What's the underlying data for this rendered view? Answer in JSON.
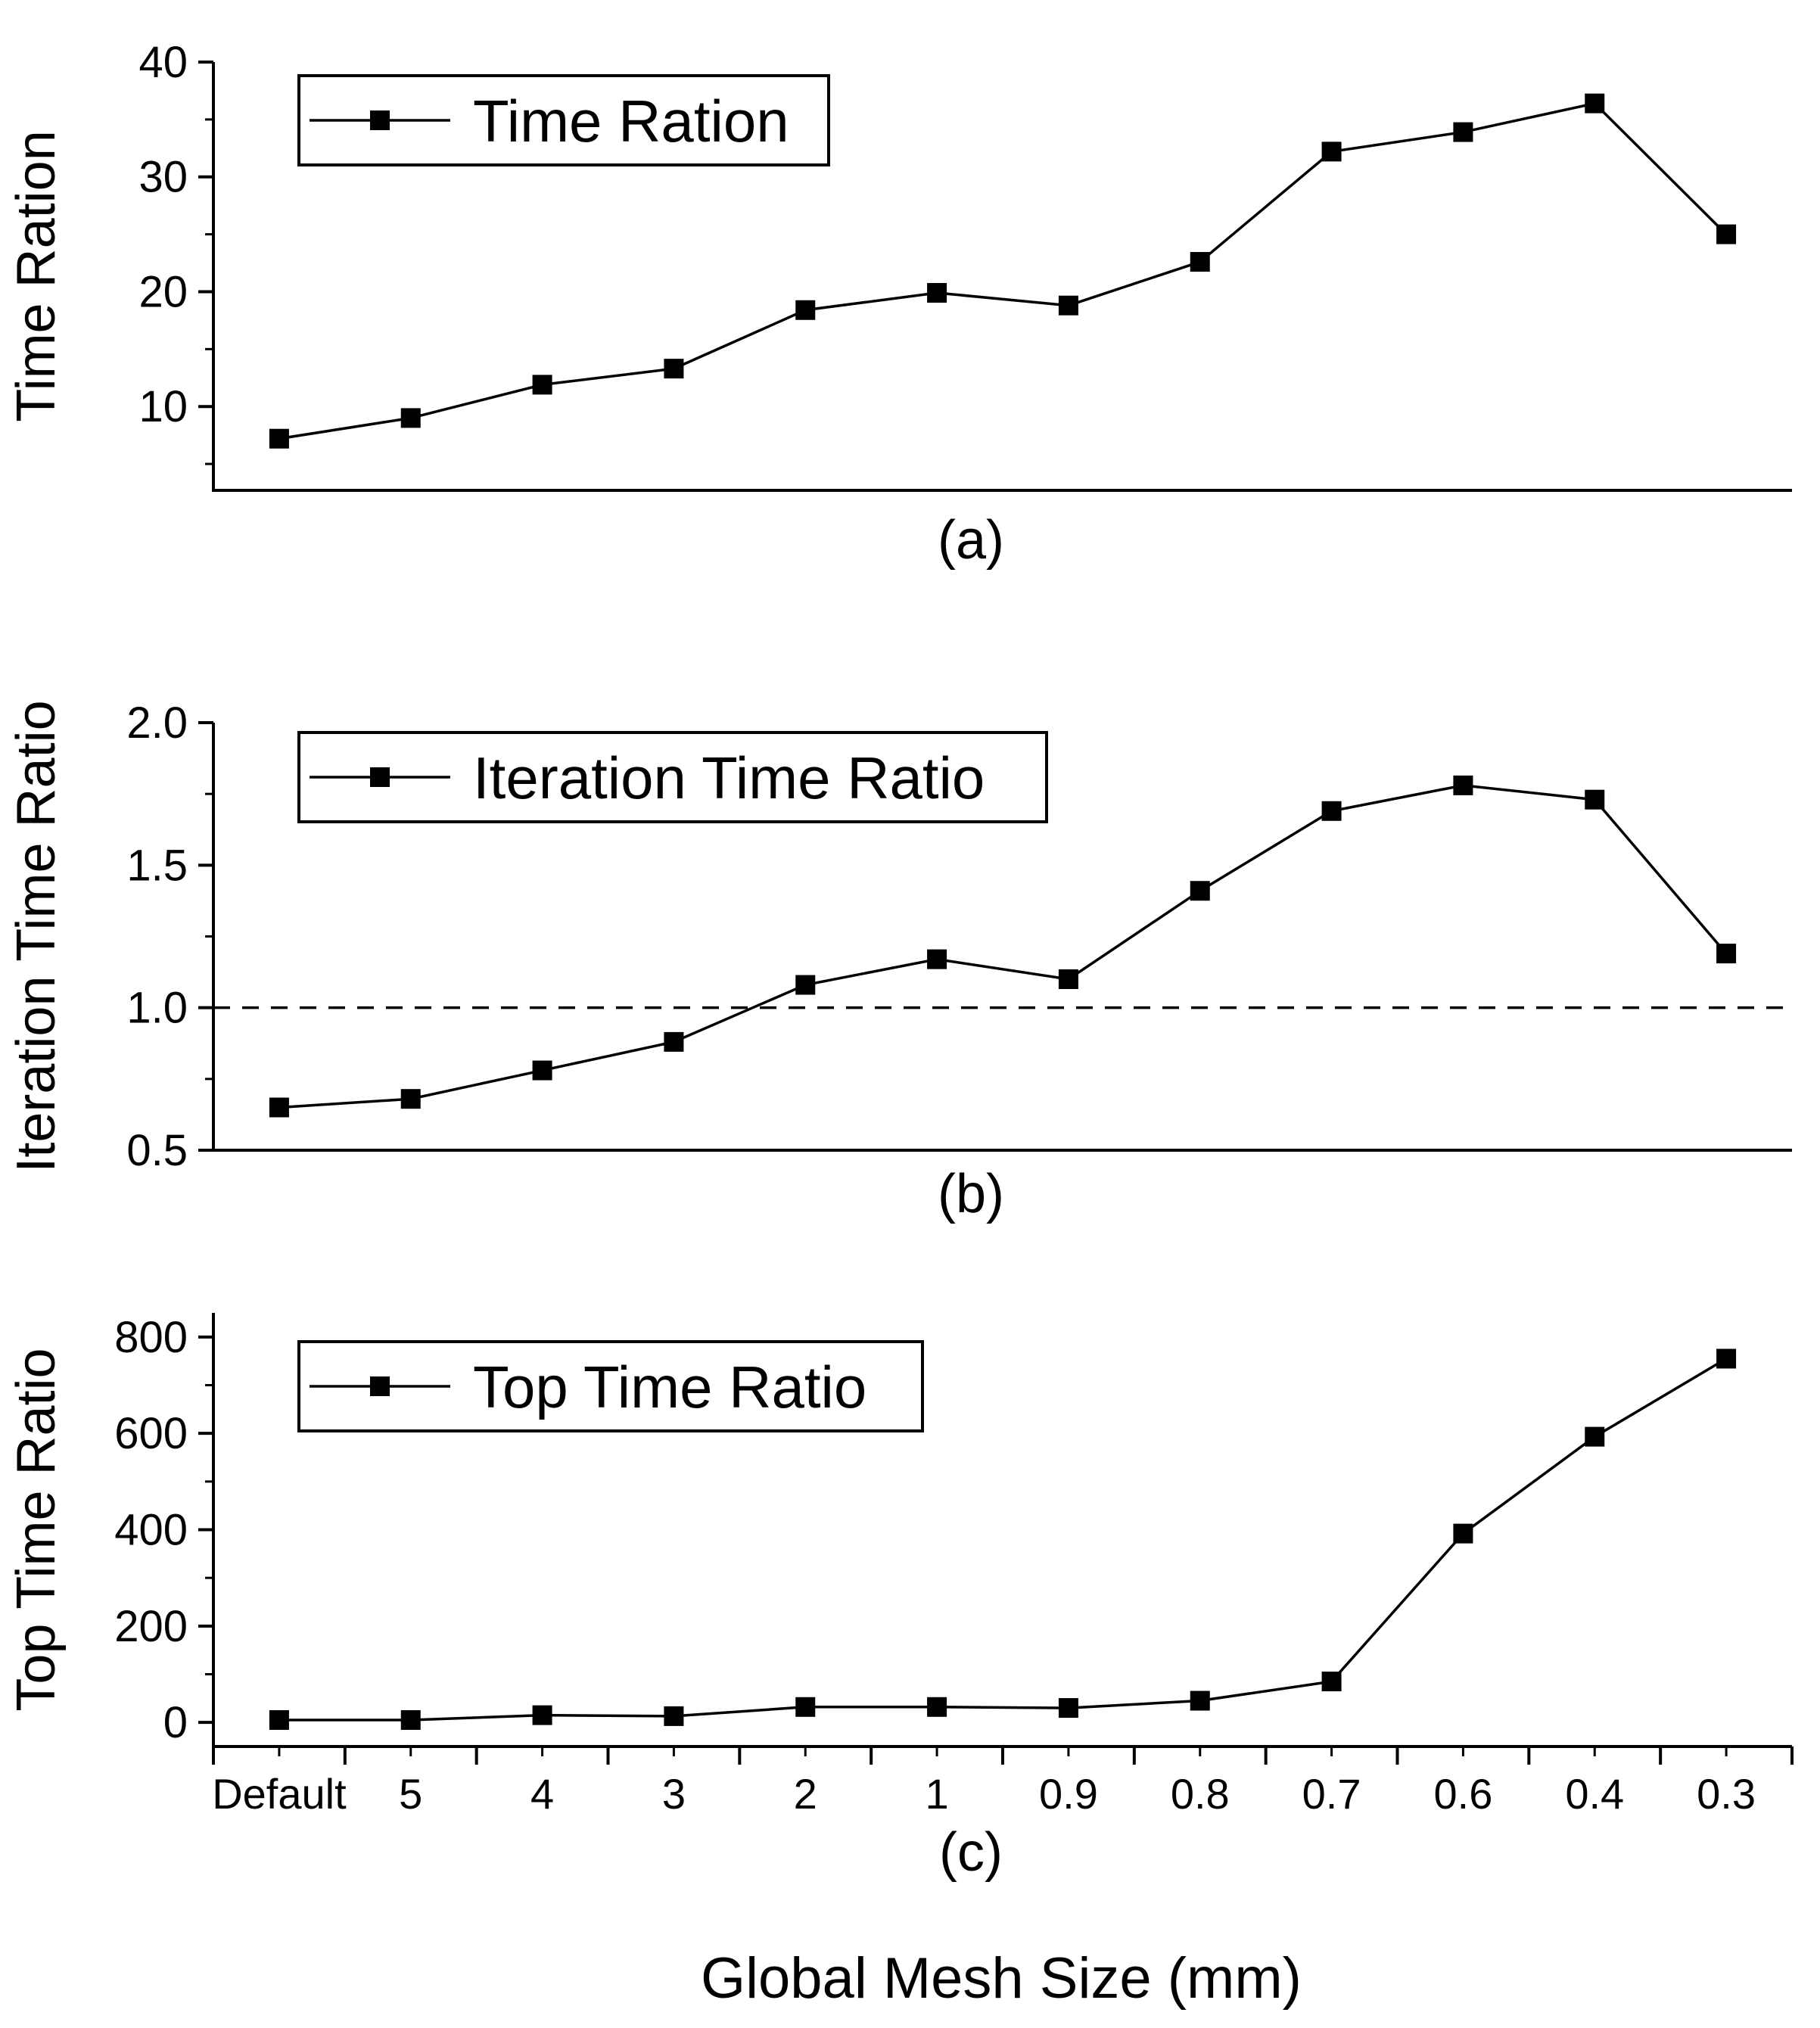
{
  "figure": {
    "xlabel": "Global Mesh Size (mm)",
    "xcategories": [
      "Default",
      "5",
      "4",
      "3",
      "2",
      "1",
      "0.9",
      "0.8",
      "0.7",
      "0.6",
      "0.4",
      "0.3"
    ]
  },
  "chart_data": [
    {
      "type": "line",
      "caption": "(a)",
      "ylabel": "Time Ration",
      "ylim": [
        2.7,
        40
      ],
      "yticks": [
        10,
        20,
        30,
        40
      ],
      "ytick_labels": [
        "10",
        "20",
        "30",
        "40"
      ],
      "categories": [
        "Default",
        "5",
        "4",
        "3",
        "2",
        "1",
        "0.9",
        "0.8",
        "0.7",
        "0.6",
        "0.4",
        "0.3"
      ],
      "series": [
        {
          "name": "Time Ration",
          "marker": "square",
          "color": "#000000",
          "values": [
            7.2,
            9.0,
            11.9,
            13.3,
            18.4,
            19.9,
            18.8,
            22.6,
            32.2,
            33.9,
            36.4,
            25.0
          ]
        }
      ],
      "legend": "top-left",
      "grid": false
    },
    {
      "type": "line",
      "caption": "(b)",
      "ylabel": "Iteration Time Ratio",
      "ylim": [
        0.5,
        2.0
      ],
      "yticks": [
        0.5,
        1.0,
        1.5,
        2.0
      ],
      "ytick_labels": [
        "0.5",
        "1.0",
        "1.5",
        "2.0"
      ],
      "categories": [
        "Default",
        "5",
        "4",
        "3",
        "2",
        "1",
        "0.9",
        "0.8",
        "0.7",
        "0.6",
        "0.4",
        "0.3"
      ],
      "series": [
        {
          "name": "Iteration Time Ratio",
          "marker": "square",
          "color": "#000000",
          "values": [
            0.65,
            0.68,
            0.78,
            0.88,
            1.08,
            1.17,
            1.1,
            1.41,
            1.69,
            1.78,
            1.73,
            1.19
          ]
        }
      ],
      "reference_line": {
        "y": 1.0,
        "style": "dashed"
      },
      "legend": "top-left",
      "grid": false
    },
    {
      "type": "line",
      "caption": "(c)",
      "ylabel": "Top Time Ratio",
      "ylim": [
        -50,
        850
      ],
      "yticks": [
        0,
        200,
        400,
        600,
        800
      ],
      "ytick_labels": [
        "0",
        "200",
        "400",
        "600",
        "800"
      ],
      "categories": [
        "Default",
        "5",
        "4",
        "3",
        "2",
        "1",
        "0.9",
        "0.8",
        "0.7",
        "0.6",
        "0.4",
        "0.3"
      ],
      "series": [
        {
          "name": "Top Time Ratio",
          "marker": "square",
          "color": "#000000",
          "values": [
            5,
            5,
            15,
            13,
            32,
            32,
            30,
            45,
            85,
            392,
            593,
            755
          ]
        }
      ],
      "legend": "top-left",
      "grid": false
    }
  ]
}
